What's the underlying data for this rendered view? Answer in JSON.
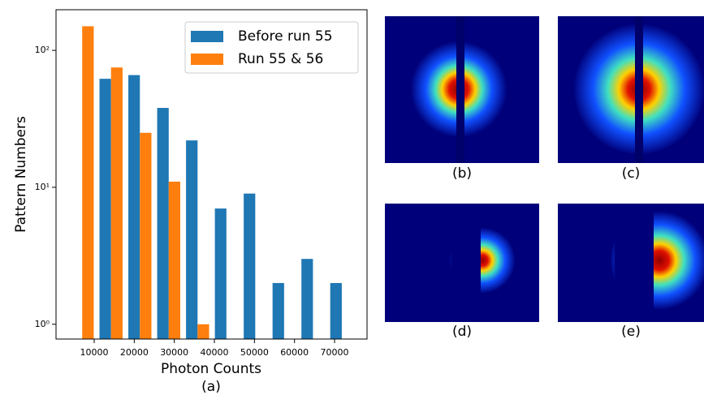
{
  "chart_data": {
    "type": "histogram",
    "ylabel": "Pattern Numbers",
    "xlabel": "Photon Counts",
    "caption": "(a)",
    "bins": [
      3400,
      10600,
      17800,
      25000,
      32200,
      39400,
      46600,
      53800,
      61000,
      68200,
      75400
    ],
    "series": [
      {
        "name": "Before run 55",
        "color": "#1f77b4",
        "values": [
          0,
          62,
          66,
          38,
          22,
          7,
          9,
          2,
          3,
          2
        ]
      },
      {
        "name": "Run 55 & 56",
        "color": "#ff7f0e",
        "values": [
          150,
          75,
          25,
          11,
          1,
          0,
          0,
          0,
          0,
          0
        ]
      }
    ],
    "xlim": [
      470,
      78100
    ],
    "xticks": [
      10000,
      20000,
      30000,
      40000,
      50000,
      60000,
      70000
    ],
    "ylim": [
      0.78,
      198
    ],
    "log_y": true,
    "yticks": [
      {
        "value": 1,
        "label": "10⁰"
      },
      {
        "value": 10,
        "label": "10¹"
      },
      {
        "value": 100,
        "label": "10²"
      }
    ],
    "legend": "upper right"
  },
  "panels": [
    {
      "label": "(b)"
    },
    {
      "label": "(c)"
    },
    {
      "label": "(d)"
    },
    {
      "label": "(e)"
    }
  ]
}
